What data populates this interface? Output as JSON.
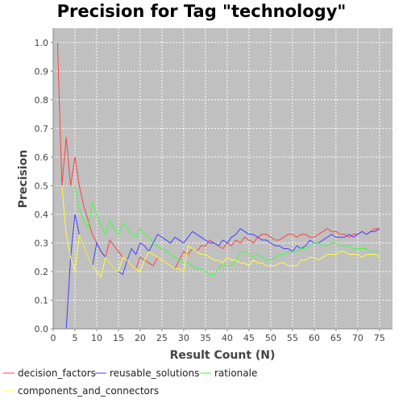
{
  "chart_data": {
    "type": "line",
    "title": "Precision for Tag \"technology\"",
    "xlabel": "Result Count (N)",
    "ylabel": "Precision",
    "xlim": [
      0,
      78
    ],
    "ylim": [
      0,
      1.05
    ],
    "xticks": [
      0,
      5,
      10,
      15,
      20,
      25,
      30,
      35,
      40,
      45,
      50,
      55,
      60,
      65,
      70,
      75
    ],
    "yticks": [
      0.0,
      0.1,
      0.2,
      0.3,
      0.4,
      0.5,
      0.6,
      0.7,
      0.8,
      0.9,
      1.0
    ],
    "grid": true,
    "legend_position": "bottom",
    "series": [
      {
        "name": "decision_factors",
        "color": "#ff4040",
        "x": [
          1,
          2,
          3,
          4,
          5,
          6,
          7,
          8,
          9,
          10,
          11,
          12,
          13,
          14,
          15,
          16,
          17,
          18,
          19,
          20,
          21,
          22,
          23,
          24,
          25,
          26,
          27,
          28,
          29,
          30,
          31,
          32,
          33,
          34,
          35,
          36,
          37,
          38,
          39,
          40,
          41,
          42,
          43,
          44,
          45,
          46,
          47,
          48,
          49,
          50,
          51,
          52,
          53,
          54,
          55,
          56,
          57,
          58,
          59,
          60,
          61,
          62,
          63,
          64,
          65,
          66,
          67,
          68,
          69,
          70,
          71,
          72,
          73,
          74,
          75
        ],
        "y": [
          1.0,
          0.5,
          0.67,
          0.5,
          0.6,
          0.5,
          0.43,
          0.38,
          0.33,
          0.3,
          0.27,
          0.25,
          0.31,
          0.29,
          0.27,
          0.25,
          0.24,
          0.22,
          0.21,
          0.25,
          0.24,
          0.23,
          0.22,
          0.25,
          0.24,
          0.23,
          0.22,
          0.21,
          0.24,
          0.27,
          0.26,
          0.28,
          0.27,
          0.29,
          0.29,
          0.31,
          0.3,
          0.29,
          0.28,
          0.3,
          0.29,
          0.31,
          0.3,
          0.32,
          0.31,
          0.3,
          0.32,
          0.33,
          0.33,
          0.32,
          0.31,
          0.31,
          0.32,
          0.33,
          0.33,
          0.32,
          0.33,
          0.33,
          0.32,
          0.32,
          0.33,
          0.34,
          0.35,
          0.34,
          0.34,
          0.33,
          0.33,
          0.32,
          0.33,
          0.33,
          0.34,
          0.33,
          0.34,
          0.35,
          0.35
        ]
      },
      {
        "name": "reusable_solutions",
        "color": "#4040ff",
        "x": [
          1,
          2,
          3,
          4,
          5,
          6,
          7,
          8,
          9,
          10,
          11,
          12,
          13,
          14,
          15,
          16,
          17,
          18,
          19,
          20,
          21,
          22,
          23,
          24,
          25,
          26,
          27,
          28,
          29,
          30,
          31,
          32,
          33,
          34,
          35,
          36,
          37,
          38,
          39,
          40,
          41,
          42,
          43,
          44,
          45,
          46,
          47,
          48,
          49,
          50,
          51,
          52,
          53,
          54,
          55,
          56,
          57,
          58,
          59,
          60,
          61,
          62,
          63,
          64,
          65,
          66,
          67,
          68,
          69,
          70,
          71,
          72,
          73,
          74,
          75
        ],
        "y": [
          0.0,
          0.0,
          0.0,
          0.25,
          0.4,
          0.33,
          0.29,
          0.25,
          0.22,
          0.3,
          0.27,
          0.25,
          0.23,
          0.21,
          0.2,
          0.19,
          0.24,
          0.28,
          0.26,
          0.3,
          0.29,
          0.27,
          0.3,
          0.33,
          0.32,
          0.31,
          0.3,
          0.32,
          0.31,
          0.3,
          0.32,
          0.34,
          0.33,
          0.32,
          0.31,
          0.3,
          0.3,
          0.29,
          0.31,
          0.3,
          0.32,
          0.33,
          0.35,
          0.34,
          0.33,
          0.33,
          0.32,
          0.31,
          0.31,
          0.3,
          0.29,
          0.29,
          0.28,
          0.28,
          0.27,
          0.29,
          0.28,
          0.29,
          0.31,
          0.3,
          0.3,
          0.31,
          0.32,
          0.33,
          0.32,
          0.32,
          0.32,
          0.33,
          0.32,
          0.33,
          0.34,
          0.33,
          0.34,
          0.34,
          0.35
        ]
      },
      {
        "name": "rationale",
        "color": "#40ff40",
        "x": [
          1,
          2,
          3,
          4,
          5,
          6,
          7,
          8,
          9,
          10,
          11,
          12,
          13,
          14,
          15,
          16,
          17,
          18,
          19,
          20,
          21,
          22,
          23,
          24,
          25,
          26,
          27,
          28,
          29,
          30,
          31,
          32,
          33,
          34,
          35,
          36,
          37,
          38,
          39,
          40,
          41,
          42,
          43,
          44,
          45,
          46,
          47,
          48,
          49,
          50,
          51,
          52,
          53,
          54,
          55,
          56,
          57,
          58,
          59,
          60,
          61,
          62,
          63,
          64,
          65,
          66,
          67,
          68,
          69,
          70,
          71,
          72,
          73,
          74,
          75
        ],
        "y": [
          null,
          null,
          null,
          null,
          0.5,
          0.42,
          0.38,
          0.35,
          0.44,
          0.4,
          0.36,
          0.33,
          0.38,
          0.35,
          0.33,
          0.37,
          0.35,
          0.33,
          0.32,
          0.35,
          0.33,
          0.32,
          0.3,
          0.29,
          0.28,
          0.27,
          0.26,
          0.25,
          0.24,
          0.23,
          0.23,
          0.22,
          0.21,
          0.21,
          0.2,
          0.19,
          0.19,
          0.21,
          0.23,
          0.22,
          0.22,
          0.24,
          0.27,
          0.27,
          0.26,
          0.25,
          0.26,
          0.25,
          0.24,
          0.24,
          0.25,
          0.26,
          0.26,
          0.27,
          0.27,
          0.27,
          0.28,
          0.28,
          0.29,
          0.3,
          0.3,
          0.29,
          0.29,
          0.3,
          0.3,
          0.29,
          0.29,
          0.29,
          0.28,
          0.28,
          0.28,
          0.28,
          0.27,
          0.27,
          0.27
        ]
      },
      {
        "name": "components_and_connectors",
        "color": "#ffff40",
        "x": [
          1,
          2,
          3,
          4,
          5,
          6,
          7,
          8,
          9,
          10,
          11,
          12,
          13,
          14,
          15,
          16,
          17,
          18,
          19,
          20,
          21,
          22,
          23,
          24,
          25,
          26,
          27,
          28,
          29,
          30,
          31,
          32,
          33,
          34,
          35,
          36,
          37,
          38,
          39,
          40,
          41,
          42,
          43,
          44,
          45,
          46,
          47,
          48,
          49,
          50,
          51,
          52,
          53,
          54,
          55,
          56,
          57,
          58,
          59,
          60,
          61,
          62,
          63,
          64,
          65,
          66,
          67,
          68,
          69,
          70,
          71,
          72,
          73,
          74,
          75
        ],
        "y": [
          null,
          0.5,
          0.33,
          0.25,
          0.2,
          0.33,
          0.29,
          0.25,
          0.22,
          0.2,
          0.18,
          0.25,
          0.23,
          0.21,
          0.2,
          0.25,
          0.24,
          0.22,
          0.21,
          0.2,
          0.24,
          0.27,
          0.26,
          0.25,
          0.24,
          0.23,
          0.22,
          0.21,
          0.21,
          0.2,
          0.29,
          0.28,
          0.27,
          0.26,
          0.26,
          0.25,
          0.24,
          0.24,
          0.23,
          0.25,
          0.24,
          0.24,
          0.23,
          0.23,
          0.22,
          0.24,
          0.23,
          0.23,
          0.22,
          0.22,
          0.22,
          0.23,
          0.23,
          0.22,
          0.22,
          0.22,
          0.24,
          0.24,
          0.25,
          0.25,
          0.24,
          0.25,
          0.26,
          0.26,
          0.26,
          0.27,
          0.27,
          0.26,
          0.26,
          0.26,
          0.25,
          0.26,
          0.26,
          0.26,
          0.25
        ]
      }
    ]
  }
}
